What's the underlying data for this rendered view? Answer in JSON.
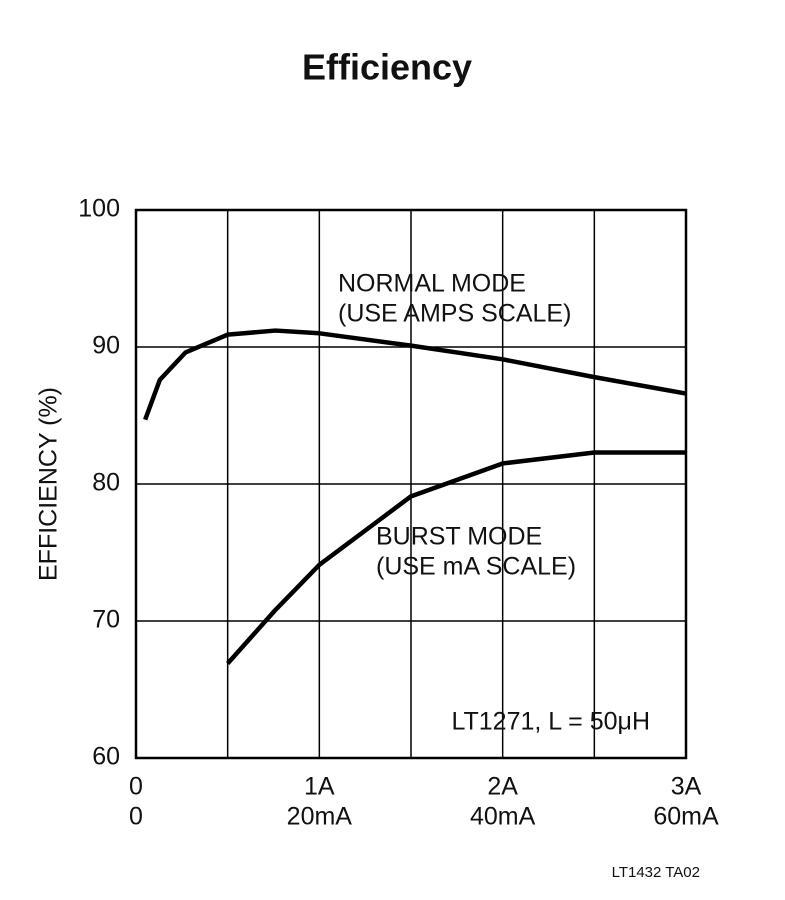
{
  "chart_data": {
    "type": "line",
    "title": "Efficiency",
    "ylabel": "EFFICIENCY (%)",
    "xlim": [
      0,
      3
    ],
    "xticks": [
      0,
      {
        "value": 1,
        "label": "1A"
      },
      {
        "value": 2,
        "label": "2A"
      },
      {
        "value": 3,
        "label": "3A"
      }
    ],
    "x2lim": [
      0,
      60
    ],
    "x2ticks": [
      0,
      {
        "value": 20,
        "label": "20mA"
      },
      {
        "value": 40,
        "label": "40mA"
      },
      {
        "value": 60,
        "label": "60mA"
      }
    ],
    "xgrid": [
      0.5,
      1,
      1.5,
      2,
      2.5
    ],
    "ylim": [
      60,
      100
    ],
    "yticks": [
      60,
      70,
      80,
      90,
      100
    ],
    "grid": true,
    "series": [
      {
        "name": "NORMAL MODE",
        "color": "#000000",
        "x": [
          0.05,
          0.13,
          0.27,
          0.5,
          0.76,
          1.0,
          1.5,
          2.0,
          2.5,
          3.0
        ],
        "values": [
          84.7,
          87.6,
          89.6,
          90.9,
          91.2,
          91.0,
          90.1,
          89.1,
          87.8,
          86.6
        ]
      },
      {
        "name": "BURST MODE",
        "color": "#000000",
        "x": [
          0.5,
          0.76,
          1.0,
          1.5,
          2.0,
          2.5,
          3.0
        ],
        "values": [
          66.9,
          70.8,
          74.1,
          79.1,
          81.5,
          82.3,
          82.3
        ]
      }
    ],
    "annotations": [
      "(USE AMPS SCALE)",
      "(USE mA SCALE)",
      "LT1271, L = 50μH"
    ],
    "footnote": "LT1432 TA02"
  }
}
